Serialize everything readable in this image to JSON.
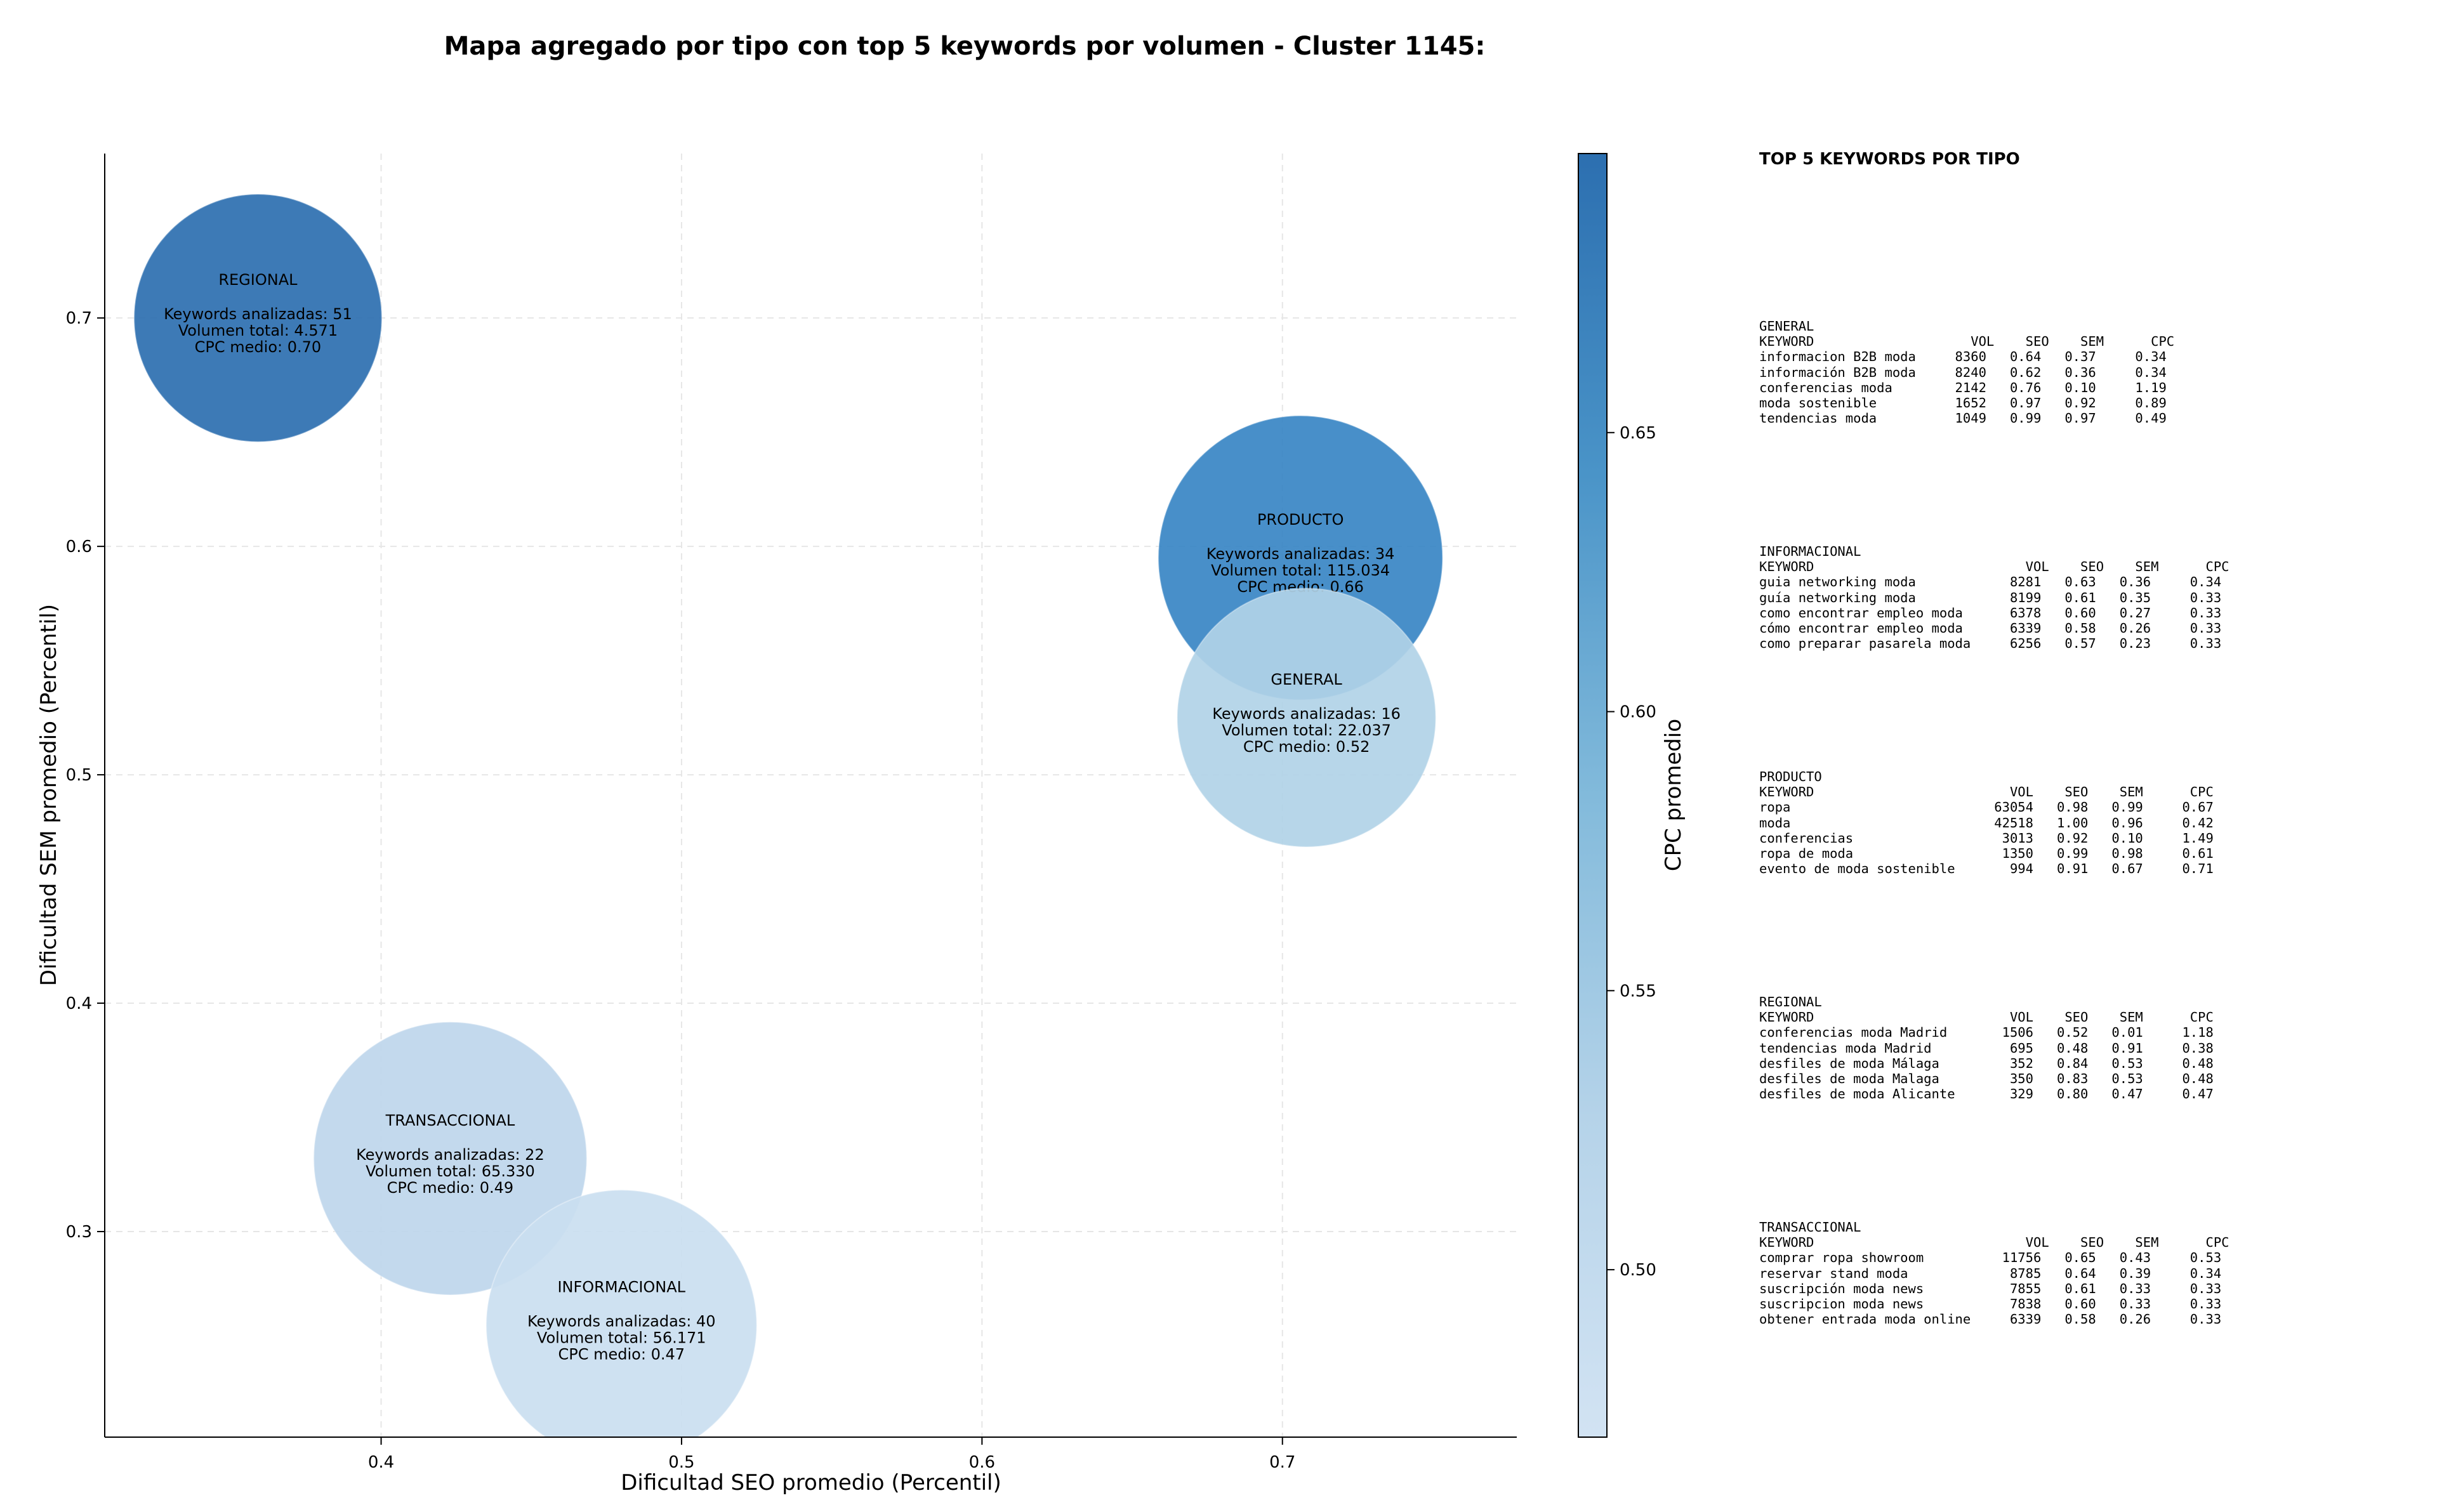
{
  "title": "Mapa agregado por tipo con top 5 keywords por volumen - Cluster 1145:",
  "chart_data": {
    "type": "scatter",
    "subtype": "bubble",
    "xlabel": "Dificultad SEO promedio (Percentil)",
    "ylabel": "Dificultad SEM promedio (Percentil)",
    "xlim": [
      0.308,
      0.778
    ],
    "ylim": [
      0.21,
      0.772
    ],
    "xticks": [
      0.4,
      0.5,
      0.6,
      0.7
    ],
    "yticks": [
      0.3,
      0.4,
      0.5,
      0.6,
      0.7
    ],
    "grid": true,
    "colorbar": {
      "label": "CPC promedio",
      "range": [
        0.47,
        0.7
      ],
      "ticks": [
        0.5,
        0.55,
        0.6,
        0.65
      ],
      "colormap": "Blues",
      "color_low": "#c6dbef",
      "color_high": "#2c6fb0"
    },
    "bubbles": [
      {
        "name": "REGIONAL",
        "x": 0.359,
        "y": 0.7,
        "keywords_label": "Keywords analizadas: 51",
        "volume_label": "Volumen total: 4.571",
        "cpc_label": "CPC medio: 0.70",
        "keywords": 51,
        "volume": 4571,
        "cpc": 0.7,
        "color": "#2c6fb0"
      },
      {
        "name": "PRODUCTO",
        "x": 0.706,
        "y": 0.595,
        "keywords_label": "Keywords analizadas: 34",
        "volume_label": "Volumen total: 115.034",
        "cpc_label": "CPC medio: 0.66",
        "keywords": 34,
        "volume": 115034,
        "cpc": 0.66,
        "color": "#3886c4"
      },
      {
        "name": "GENERAL",
        "x": 0.708,
        "y": 0.525,
        "keywords_label": "Keywords analizadas: 16",
        "volume_label": "Volumen total: 22.037",
        "cpc_label": "CPC medio: 0.52",
        "keywords": 16,
        "volume": 22037,
        "cpc": 0.52,
        "color": "#b1d2e7"
      },
      {
        "name": "TRANSACCIONAL",
        "x": 0.423,
        "y": 0.332,
        "keywords_label": "Keywords analizadas: 22",
        "volume_label": "Volumen total: 65.330",
        "cpc_label": "CPC medio: 0.49",
        "keywords": 22,
        "volume": 65330,
        "cpc": 0.49,
        "color": "#bed6ec"
      },
      {
        "name": "INFORMACIONAL",
        "x": 0.48,
        "y": 0.259,
        "keywords_label": "Keywords analizadas: 40",
        "volume_label": "Volumen total: 56.171",
        "cpc_label": "CPC medio: 0.47",
        "keywords": 40,
        "volume": 56171,
        "cpc": 0.47,
        "color": "#cadef0"
      }
    ]
  },
  "keyword_panel": {
    "title": "TOP 5 KEYWORDS POR TIPO",
    "groups": [
      {
        "name": "GENERAL",
        "header": "KEYWORD                    VOL    SEO    SEM      CPC",
        "rows": [
          "informacion B2B moda     8360   0.64   0.37     0.34",
          "información B2B moda     8240   0.62   0.36     0.34",
          "conferencias moda        2142   0.76   0.10     1.19",
          "moda sostenible          1652   0.97   0.92     0.89",
          "tendencias moda          1049   0.99   0.97     0.49"
        ]
      },
      {
        "name": "INFORMACIONAL",
        "header": "KEYWORD                           VOL    SEO    SEM      CPC",
        "rows": [
          "guia networking moda            8281   0.63   0.36     0.34",
          "guía networking moda            8199   0.61   0.35     0.33",
          "como encontrar empleo moda      6378   0.60   0.27     0.33",
          "cómo encontrar empleo moda      6339   0.58   0.26     0.33",
          "como preparar pasarela moda     6256   0.57   0.23     0.33"
        ]
      },
      {
        "name": "PRODUCTO",
        "header": "KEYWORD                         VOL    SEO    SEM      CPC",
        "rows": [
          "ropa                          63054   0.98   0.99     0.67",
          "moda                          42518   1.00   0.96     0.42",
          "conferencias                   3013   0.92   0.10     1.49",
          "ropa de moda                   1350   0.99   0.98     0.61",
          "evento de moda sostenible       994   0.91   0.67     0.71"
        ]
      },
      {
        "name": "REGIONAL",
        "header": "KEYWORD                         VOL    SEO    SEM      CPC",
        "rows": [
          "conferencias moda Madrid       1506   0.52   0.01     1.18",
          "tendencias moda Madrid          695   0.48   0.91     0.38",
          "desfiles de moda Málaga         352   0.84   0.53     0.48",
          "desfiles de moda Malaga         350   0.83   0.53     0.48",
          "desfiles de moda Alicante       329   0.80   0.47     0.47"
        ]
      },
      {
        "name": "TRANSACCIONAL",
        "header": "KEYWORD                           VOL    SEO    SEM      CPC",
        "rows": [
          "comprar ropa showroom          11756   0.65   0.43     0.53",
          "reservar stand moda             8785   0.64   0.39     0.34",
          "suscripción moda news           7855   0.61   0.33     0.33",
          "suscripcion moda news           7838   0.60   0.33     0.33",
          "obtener entrada moda online     6339   0.58   0.26     0.33"
        ]
      }
    ]
  }
}
